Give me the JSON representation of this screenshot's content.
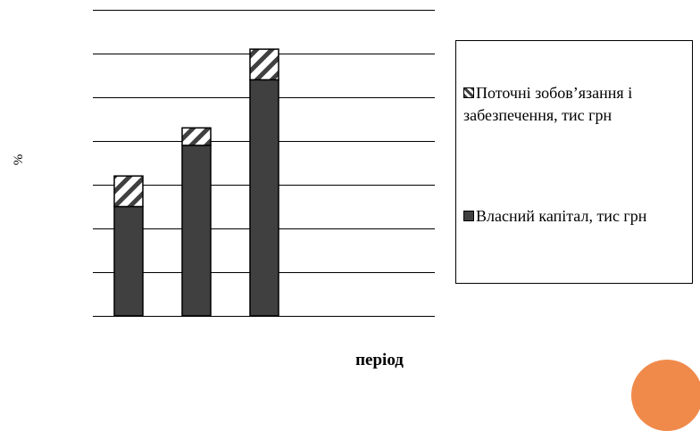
{
  "chart_data": {
    "type": "bar",
    "stacked": true,
    "categories": [
      "",
      "",
      ""
    ],
    "series": [
      {
        "name": "Власний капітал, тис грн",
        "values": [
          2.5,
          3.9,
          5.4
        ],
        "color": "#404040",
        "pattern": "solid"
      },
      {
        "name": "Поточні зобов’язання і забезпечення, тис грн",
        "values": [
          0.7,
          0.4,
          0.7
        ],
        "color": "#404040",
        "pattern": "diagonal-hatch"
      }
    ],
    "title": "",
    "xlabel": "період",
    "ylabel": "%",
    "ylim": [
      0,
      7
    ],
    "grid": true,
    "tick_labels_shown": false,
    "legend_position": "right"
  },
  "legend_order": [
    1,
    0
  ],
  "colors": {
    "decoration": "#f08a4b",
    "grid": "#000000",
    "bar_border": "#000000"
  }
}
